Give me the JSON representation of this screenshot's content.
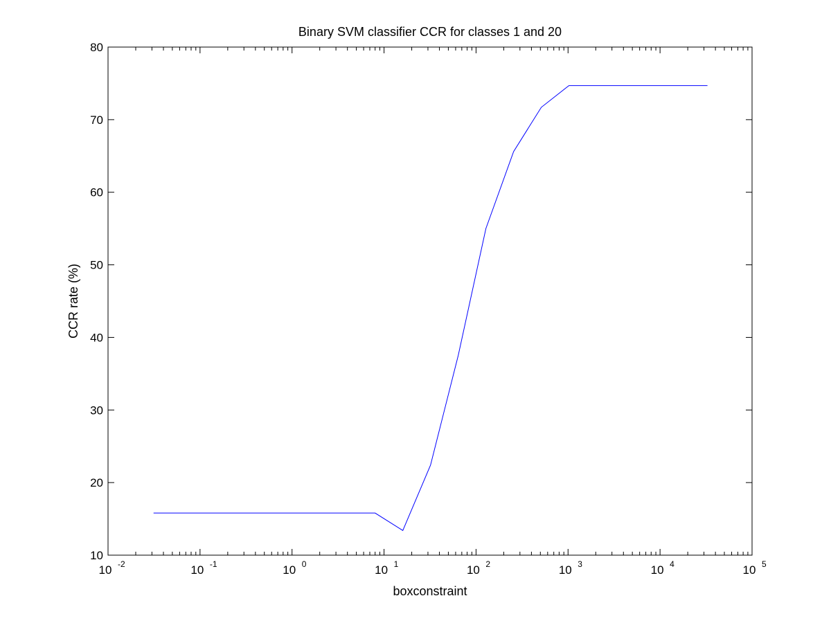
{
  "chart_data": {
    "type": "line",
    "title": "Binary SVM classifier CCR for classes 1 and 20",
    "xlabel": "boxconstraint",
    "ylabel": "CCR rate (%)",
    "xscale": "log",
    "xlim": [
      0.01,
      100000
    ],
    "ylim": [
      10,
      80
    ],
    "x_ticks": [
      {
        "base": "10",
        "exp": "-2"
      },
      {
        "base": "10",
        "exp": "-1"
      },
      {
        "base": "10",
        "exp": "0"
      },
      {
        "base": "10",
        "exp": "1"
      },
      {
        "base": "10",
        "exp": "2"
      },
      {
        "base": "10",
        "exp": "3"
      },
      {
        "base": "10",
        "exp": "4"
      },
      {
        "base": "10",
        "exp": "5"
      }
    ],
    "y_ticks": [
      "10",
      "20",
      "30",
      "40",
      "50",
      "60",
      "70",
      "80"
    ],
    "grid": false,
    "series": [
      {
        "color": "#0000ff",
        "x": [
          0.03125,
          0.0625,
          0.125,
          0.25,
          0.5,
          1,
          2,
          4,
          8,
          16,
          32,
          64,
          128,
          256,
          512,
          1024,
          2048,
          4096,
          8192,
          16384,
          32768
        ],
        "y": [
          15.8,
          15.8,
          15.8,
          15.8,
          15.8,
          15.8,
          15.8,
          15.8,
          15.8,
          13.4,
          22.4,
          37.5,
          55.0,
          65.6,
          71.7,
          74.7,
          74.7,
          74.7,
          74.7,
          74.7,
          74.7
        ]
      }
    ]
  }
}
